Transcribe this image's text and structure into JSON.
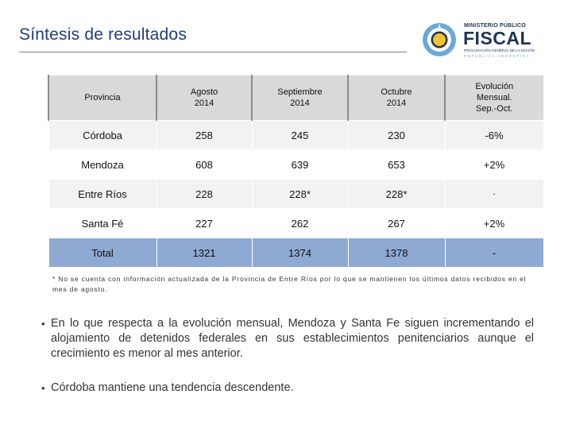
{
  "header": {
    "title": "Síntesis de resultados"
  },
  "logo": {
    "line1": "MINISTERIO PÚBLICO",
    "line2": "FISCAL",
    "line3": "PROCURACIÓN GENERAL DE LA NACIÓN",
    "line4": "REPÚBLICA ARGENTINA",
    "colors": {
      "navy": "#1f3550",
      "sky": "#6aa9d8",
      "sun": "#f2c230"
    }
  },
  "table": {
    "headers": [
      "Provincia",
      "Agosto\n2014",
      "Septiembre\n2014",
      "Octubre\n2014",
      "Evolución\nMensual.\nSep.-Oct."
    ],
    "rows": [
      [
        "Córdoba",
        "258",
        "245",
        "230",
        "-6%"
      ],
      [
        "Mendoza",
        "608",
        "639",
        "653",
        "+2%"
      ],
      [
        "Entre Ríos",
        "228",
        "228*",
        "228*",
        "-"
      ],
      [
        "Santa Fé",
        "227",
        "262",
        "267",
        "+2%"
      ]
    ],
    "total": [
      "Total",
      "1321",
      "1374",
      "1378",
      "-"
    ],
    "colors": {
      "header_bg": "#d9d9d9",
      "total_bg": "#8eaad3",
      "alt_bg": "#f2f2f2"
    }
  },
  "footnote": "* No se cuenta con información actualizada de la Provincia de Entre Ríos por lo que se mantienen los últimos datos recibidos en el mes de agosto.",
  "bullets": [
    "En lo que respecta a la evolución mensual, Mendoza y Santa Fe siguen incrementando el alojamiento de detenidos federales en sus establecimientos penitenciarios aunque el crecimiento es menor al mes anterior.",
    "Córdoba mantiene una tendencia descendente."
  ]
}
